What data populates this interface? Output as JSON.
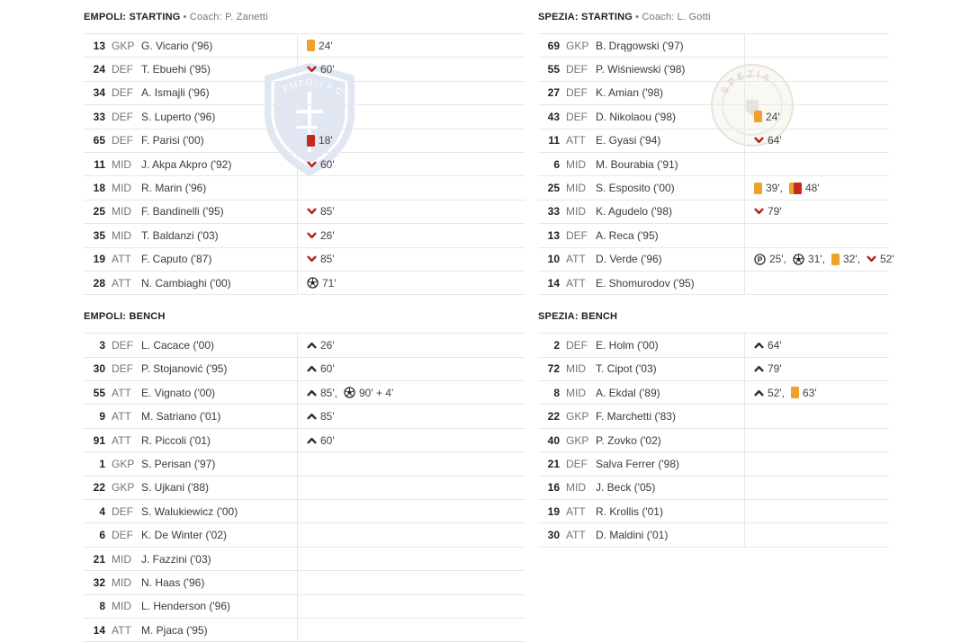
{
  "colors": {
    "card-yellow": "#EDA32B",
    "card-red": "#C6281C",
    "sub-off": "#B5221C",
    "sub-on": "#263238",
    "text-primary": "#212121",
    "text-secondary": "#757575",
    "minute": "#424242",
    "border": "#E7E7E7",
    "ball": "#212121"
  },
  "columns": [
    {
      "team": "Empoli",
      "sections": [
        {
          "title": "EMPOLI: STARTING",
          "coach": "• Coach: P. Zanetti",
          "players": [
            {
              "number": "13",
              "pos": "GKP",
              "name": "G. Vicario ('96)",
              "events": [
                {
                  "icon": "yellow-card",
                  "minute": "24'"
                }
              ]
            },
            {
              "number": "24",
              "pos": "DEF",
              "name": "T. Ebuehi ('95)",
              "events": [
                {
                  "icon": "sub-off",
                  "minute": "60'"
                }
              ]
            },
            {
              "number": "34",
              "pos": "DEF",
              "name": "A. Ismajli ('96)",
              "events": []
            },
            {
              "number": "33",
              "pos": "DEF",
              "name": "S. Luperto ('96)",
              "events": []
            },
            {
              "number": "65",
              "pos": "DEF",
              "name": "F. Parisi ('00)",
              "events": [
                {
                  "icon": "red-card",
                  "minute": "18'"
                }
              ]
            },
            {
              "number": "11",
              "pos": "MID",
              "name": "J. Akpa Akpro ('92)",
              "events": [
                {
                  "icon": "sub-off",
                  "minute": "60'"
                }
              ]
            },
            {
              "number": "18",
              "pos": "MID",
              "name": "R. Marin ('96)",
              "events": []
            },
            {
              "number": "25",
              "pos": "MID",
              "name": "F. Bandinelli ('95)",
              "events": [
                {
                  "icon": "sub-off",
                  "minute": "85'"
                }
              ]
            },
            {
              "number": "35",
              "pos": "MID",
              "name": "T. Baldanzi ('03)",
              "events": [
                {
                  "icon": "sub-off",
                  "minute": "26'"
                }
              ]
            },
            {
              "number": "19",
              "pos": "ATT",
              "name": "F. Caputo ('87)",
              "events": [
                {
                  "icon": "sub-off",
                  "minute": "85'"
                }
              ]
            },
            {
              "number": "28",
              "pos": "ATT",
              "name": "N. Cambiaghi ('00)",
              "events": [
                {
                  "icon": "goal",
                  "minute": "71'"
                }
              ]
            }
          ]
        },
        {
          "title": "EMPOLI: BENCH",
          "coach": "",
          "players": [
            {
              "number": "3",
              "pos": "DEF",
              "name": "L. Cacace ('00)",
              "events": [
                {
                  "icon": "sub-on",
                  "minute": "26'"
                }
              ]
            },
            {
              "number": "30",
              "pos": "DEF",
              "name": "P. Stojanović ('95)",
              "events": [
                {
                  "icon": "sub-on",
                  "minute": "60'"
                }
              ]
            },
            {
              "number": "55",
              "pos": "ATT",
              "name": "E. Vignato ('00)",
              "events": [
                {
                  "icon": "sub-on",
                  "minute": "85'"
                },
                {
                  "icon": "goal",
                  "minute": "90' + 4'"
                }
              ]
            },
            {
              "number": "9",
              "pos": "ATT",
              "name": "M. Satriano ('01)",
              "events": [
                {
                  "icon": "sub-on",
                  "minute": "85'"
                }
              ]
            },
            {
              "number": "91",
              "pos": "ATT",
              "name": "R. Piccoli ('01)",
              "events": [
                {
                  "icon": "sub-on",
                  "minute": "60'"
                }
              ]
            },
            {
              "number": "1",
              "pos": "GKP",
              "name": "S. Perisan ('97)",
              "events": []
            },
            {
              "number": "22",
              "pos": "GKP",
              "name": "S. Ujkani ('88)",
              "events": []
            },
            {
              "number": "4",
              "pos": "DEF",
              "name": "S. Walukiewicz ('00)",
              "events": []
            },
            {
              "number": "6",
              "pos": "DEF",
              "name": "K. De Winter ('02)",
              "events": []
            },
            {
              "number": "21",
              "pos": "MID",
              "name": "J. Fazzini ('03)",
              "events": []
            },
            {
              "number": "32",
              "pos": "MID",
              "name": "N. Haas ('96)",
              "events": []
            },
            {
              "number": "8",
              "pos": "MID",
              "name": "L. Henderson ('96)",
              "events": []
            },
            {
              "number": "14",
              "pos": "ATT",
              "name": "M. Pjaca ('95)",
              "events": []
            }
          ]
        }
      ]
    },
    {
      "team": "Spezia",
      "sections": [
        {
          "title": "SPEZIA: STARTING",
          "coach": "• Coach: L. Gotti",
          "players": [
            {
              "number": "69",
              "pos": "GKP",
              "name": "B. Drągowski ('97)",
              "events": []
            },
            {
              "number": "55",
              "pos": "DEF",
              "name": "P. Wiśniewski ('98)",
              "events": []
            },
            {
              "number": "27",
              "pos": "DEF",
              "name": "K. Amian ('98)",
              "events": []
            },
            {
              "number": "43",
              "pos": "DEF",
              "name": "D. Nikolaou ('98)",
              "events": [
                {
                  "icon": "yellow-card",
                  "minute": "24'"
                }
              ]
            },
            {
              "number": "11",
              "pos": "ATT",
              "name": "E. Gyasi ('94)",
              "events": [
                {
                  "icon": "sub-off",
                  "minute": "64'"
                }
              ]
            },
            {
              "number": "6",
              "pos": "MID",
              "name": "M. Bourabia ('91)",
              "events": []
            },
            {
              "number": "25",
              "pos": "MID",
              "name": "S. Esposito ('00)",
              "events": [
                {
                  "icon": "yellow-card",
                  "minute": "39'"
                },
                {
                  "icon": "yellow-red-card",
                  "minute": "48'"
                }
              ]
            },
            {
              "number": "33",
              "pos": "MID",
              "name": "K. Agudelo ('98)",
              "events": [
                {
                  "icon": "sub-off",
                  "minute": "79'"
                }
              ]
            },
            {
              "number": "13",
              "pos": "DEF",
              "name": "A. Reca ('95)",
              "events": []
            },
            {
              "number": "10",
              "pos": "ATT",
              "name": "D. Verde ('96)",
              "events": [
                {
                  "icon": "penalty-goal",
                  "minute": "25'"
                },
                {
                  "icon": "goal",
                  "minute": "31'"
                },
                {
                  "icon": "yellow-card",
                  "minute": "32'"
                },
                {
                  "icon": "sub-off",
                  "minute": "52'"
                }
              ]
            },
            {
              "number": "14",
              "pos": "ATT",
              "name": "E. Shomurodov ('95)",
              "events": []
            }
          ]
        },
        {
          "title": "SPEZIA: BENCH",
          "coach": "",
          "players": [
            {
              "number": "2",
              "pos": "DEF",
              "name": "E. Holm ('00)",
              "events": [
                {
                  "icon": "sub-on",
                  "minute": "64'"
                }
              ]
            },
            {
              "number": "72",
              "pos": "MID",
              "name": "T. Cipot ('03)",
              "events": [
                {
                  "icon": "sub-on",
                  "minute": "79'"
                }
              ]
            },
            {
              "number": "8",
              "pos": "MID",
              "name": "A. Ekdal ('89)",
              "events": [
                {
                  "icon": "sub-on",
                  "minute": "52'"
                },
                {
                  "icon": "yellow-card",
                  "minute": "63'"
                }
              ]
            },
            {
              "number": "22",
              "pos": "GKP",
              "name": "F. Marchetti ('83)",
              "events": []
            },
            {
              "number": "40",
              "pos": "GKP",
              "name": "P. Zovko ('02)",
              "events": []
            },
            {
              "number": "21",
              "pos": "DEF",
              "name": "Salva Ferrer ('98)",
              "events": []
            },
            {
              "number": "16",
              "pos": "MID",
              "name": "J. Beck ('05)",
              "events": []
            },
            {
              "number": "19",
              "pos": "ATT",
              "name": "R. Krollis ('01)",
              "events": []
            },
            {
              "number": "30",
              "pos": "ATT",
              "name": "D. Maldini ('01)",
              "events": []
            }
          ]
        }
      ]
    }
  ]
}
